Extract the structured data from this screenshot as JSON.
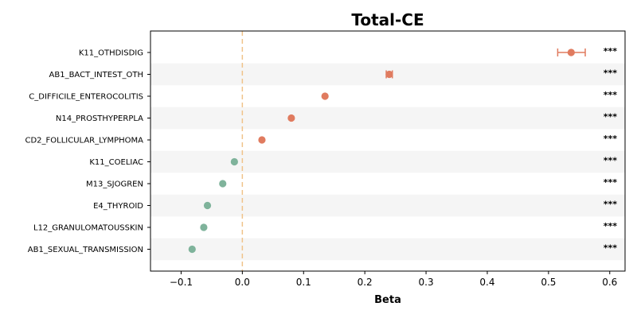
{
  "chart_data": {
    "type": "scatter",
    "title": "Total-CE",
    "xlabel": "Beta",
    "ylabel": "",
    "xlim": [
      -0.15,
      0.625
    ],
    "xticks": [
      -0.1,
      0.0,
      0.1,
      0.2,
      0.3,
      0.4,
      0.5,
      0.6
    ],
    "xtick_labels": [
      "−0.1",
      "0.0",
      "0.1",
      "0.2",
      "0.3",
      "0.4",
      "0.5",
      "0.6"
    ],
    "reference_line": 0.0,
    "positive_color": "#e07b5f",
    "negative_color": "#7fb39b",
    "reference_color": "#f0c38a",
    "stripe_color": "#f5f5f5",
    "rows": [
      {
        "label": "K11_OTHDISDIG",
        "beta": 0.537,
        "ci": [
          0.515,
          0.56
        ],
        "sig": "***"
      },
      {
        "label": "AB1_BACT_INTEST_OTH",
        "beta": 0.24,
        "ci": [
          0.235,
          0.245
        ],
        "sig": "***"
      },
      {
        "label": "C_DIFFICILE_ENTEROCOLITIS",
        "beta": 0.135,
        "ci": [
          0.132,
          0.138
        ],
        "sig": "***"
      },
      {
        "label": "N14_PROSTHYPERPLA",
        "beta": 0.08,
        "ci": [
          0.078,
          0.082
        ],
        "sig": "***"
      },
      {
        "label": "CD2_FOLLICULAR_LYMPHOMA",
        "beta": 0.032,
        "ci": [
          0.03,
          0.034
        ],
        "sig": "***"
      },
      {
        "label": "K11_COELIAC",
        "beta": -0.013,
        "ci": [
          -0.015,
          -0.011
        ],
        "sig": "***"
      },
      {
        "label": "M13_SJOGREN",
        "beta": -0.032,
        "ci": [
          -0.034,
          -0.03
        ],
        "sig": "***"
      },
      {
        "label": "E4_THYROID",
        "beta": -0.057,
        "ci": [
          -0.059,
          -0.055
        ],
        "sig": "***"
      },
      {
        "label": "L12_GRANULOMATOUSSKIN",
        "beta": -0.063,
        "ci": [
          -0.065,
          -0.061
        ],
        "sig": "***"
      },
      {
        "label": "AB1_SEXUAL_TRANSMISSION",
        "beta": -0.082,
        "ci": [
          -0.084,
          -0.08
        ],
        "sig": "***"
      }
    ]
  }
}
